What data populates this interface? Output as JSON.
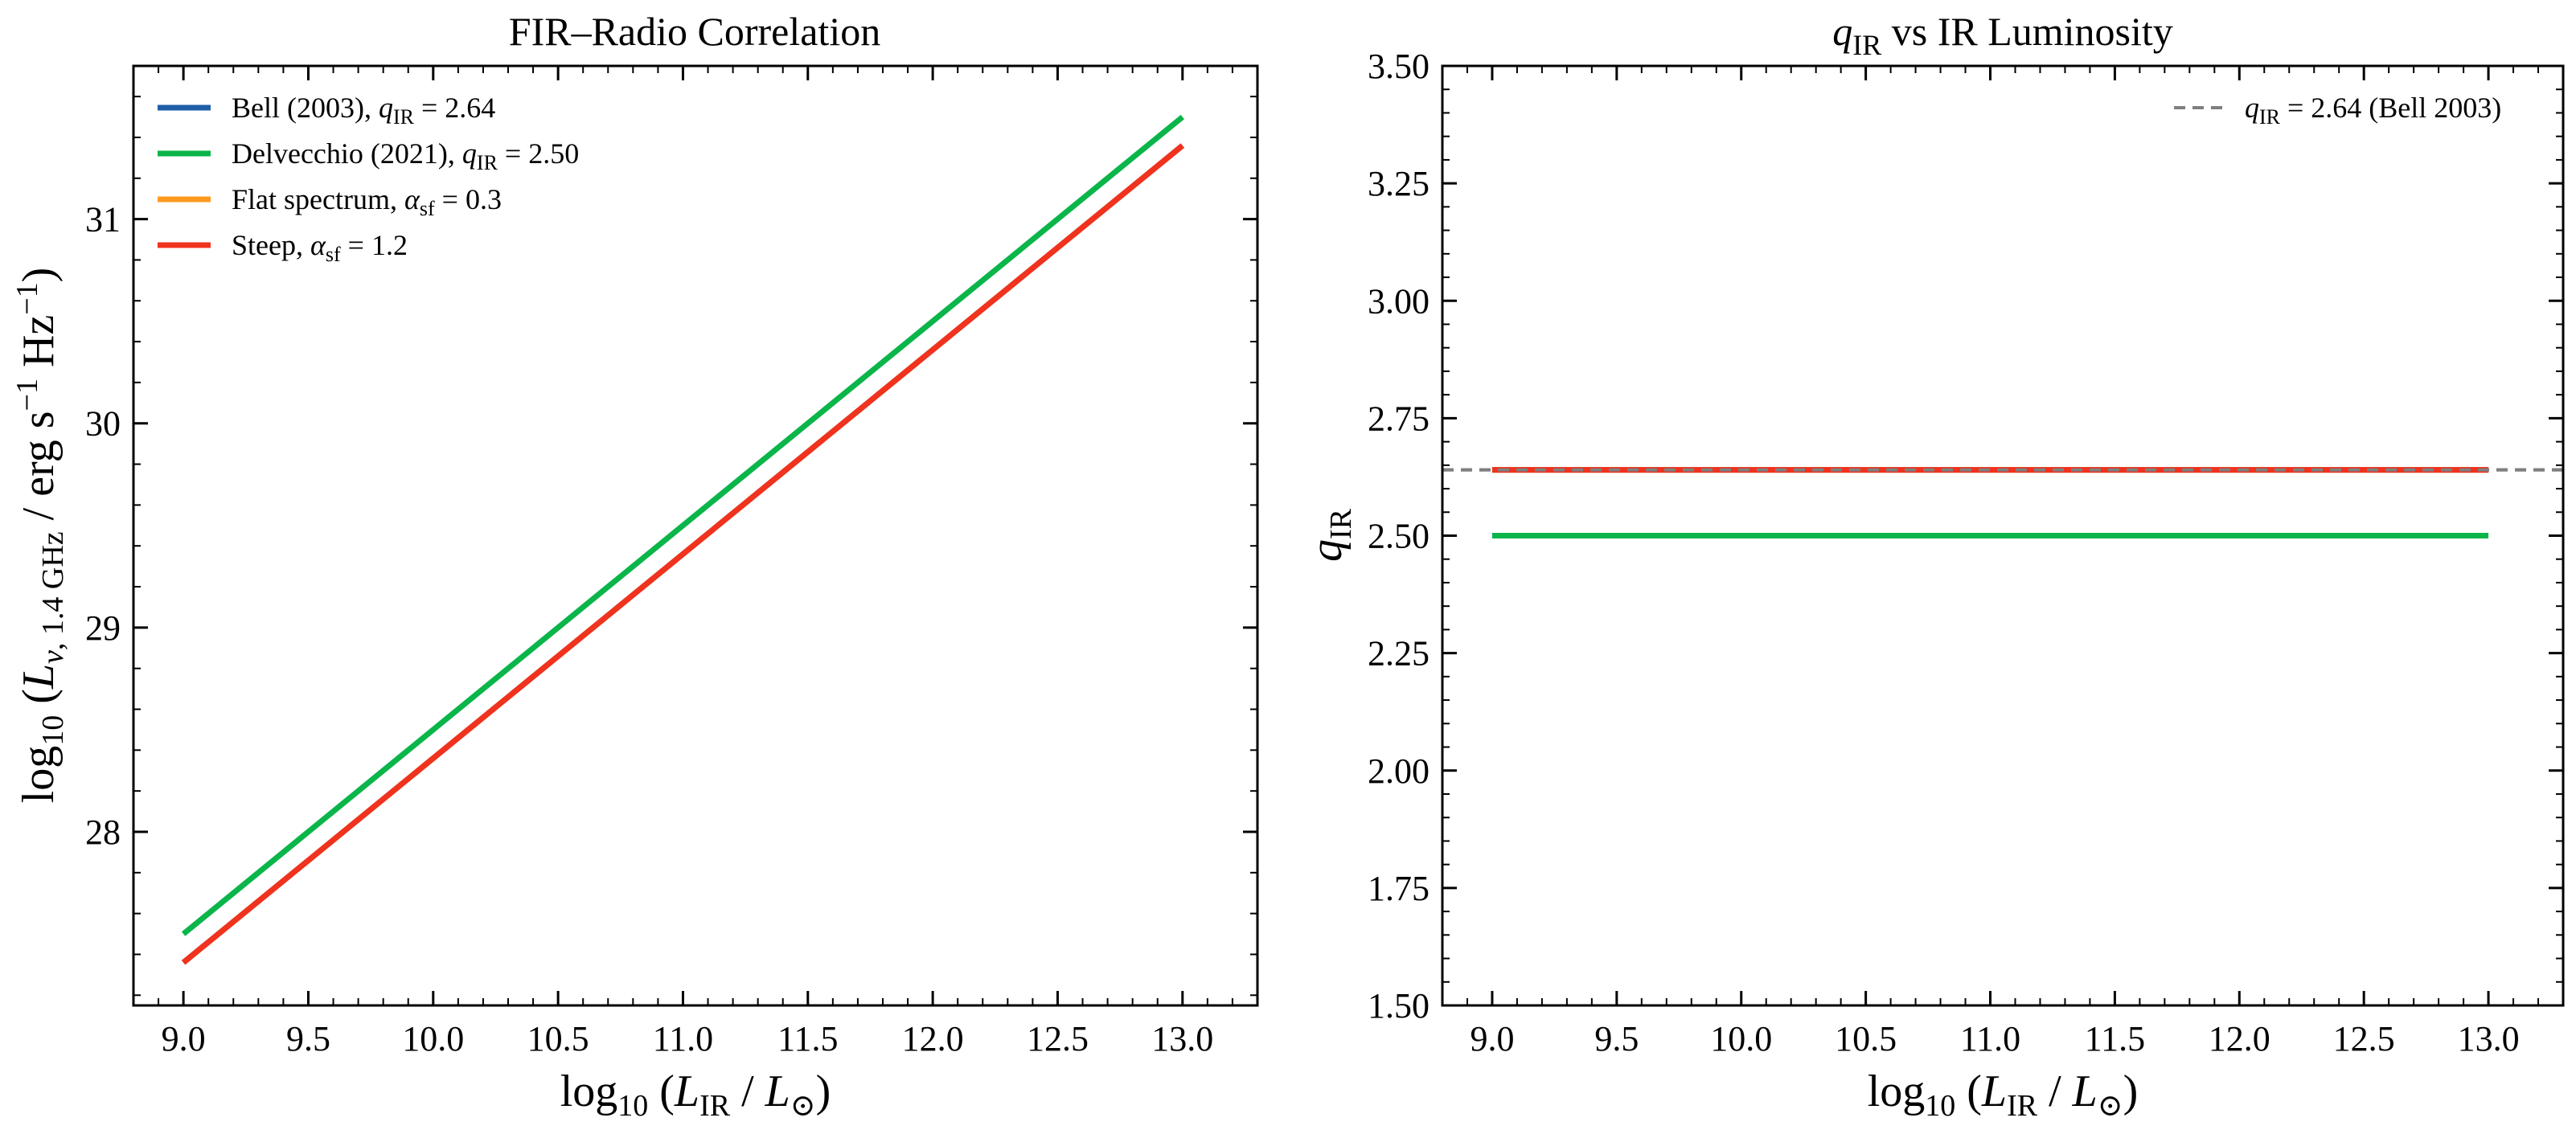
{
  "chart_data": [
    {
      "type": "line",
      "title": "FIR–Radio Correlation",
      "xlabel": "log10 (L_IR / L_⊙)",
      "ylabel": "log10 (L_ν, 1.4 GHz / erg s^−1 Hz^−1)",
      "xlim": [
        8.8,
        13.3
      ],
      "ylim": [
        27.15,
        31.75
      ],
      "xticks": [
        9.0,
        9.5,
        10.0,
        10.5,
        11.0,
        11.5,
        12.0,
        12.5,
        13.0
      ],
      "xtick_labels": [
        "9.0",
        "9.5",
        "10.0",
        "10.5",
        "11.0",
        "11.5",
        "12.0",
        "12.5",
        "13.0"
      ],
      "yticks": [
        28,
        29,
        30,
        31
      ],
      "ytick_labels": [
        "28",
        "29",
        "30",
        "31"
      ],
      "grid": false,
      "legend_position": "top-left",
      "series": [
        {
          "name": "Bell (2003), q_IR = 2.64",
          "color": "#1f5fa8",
          "x": [
            9.0,
            13.0
          ],
          "y": [
            27.36,
            31.36
          ]
        },
        {
          "name": "Delvecchio (2021), q_IR = 2.50",
          "color": "#0ab54a",
          "x": [
            9.0,
            13.0
          ],
          "y": [
            27.5,
            31.5
          ]
        },
        {
          "name": "Flat spectrum, α_sf = 0.3",
          "color": "#ff9a1f",
          "x": [
            9.0,
            13.0
          ],
          "y": [
            27.36,
            31.36
          ]
        },
        {
          "name": "Steep, α_sf = 1.2",
          "color": "#f0321e",
          "x": [
            9.0,
            13.0
          ],
          "y": [
            27.36,
            31.36
          ]
        }
      ]
    },
    {
      "type": "line",
      "title": "q_IR vs IR Luminosity",
      "xlabel": "log10 (L_IR / L_⊙)",
      "ylabel": "q_IR",
      "xlim": [
        8.8,
        13.3
      ],
      "ylim": [
        1.5,
        3.5
      ],
      "xticks": [
        9.0,
        9.5,
        10.0,
        10.5,
        11.0,
        11.5,
        12.0,
        12.5,
        13.0
      ],
      "xtick_labels": [
        "9.0",
        "9.5",
        "10.0",
        "10.5",
        "11.0",
        "11.5",
        "12.0",
        "12.5",
        "13.0"
      ],
      "yticks": [
        1.5,
        1.75,
        2.0,
        2.25,
        2.5,
        2.75,
        3.0,
        3.25,
        3.5
      ],
      "ytick_labels": [
        "1.50",
        "1.75",
        "2.00",
        "2.25",
        "2.50",
        "2.75",
        "3.00",
        "3.25",
        "3.50"
      ],
      "grid": false,
      "legend_position": "top-right",
      "reference_line": {
        "name": "q_IR = 2.64 (Bell 2003)",
        "y": 2.64,
        "color": "#7f7f7f",
        "style": "dashed"
      },
      "series": [
        {
          "name": "Bell (2003), q_IR = 2.64",
          "color": "#1f5fa8",
          "x": [
            9.0,
            13.0
          ],
          "y": [
            2.64,
            2.64
          ]
        },
        {
          "name": "Delvecchio (2021), q_IR = 2.50",
          "color": "#0ab54a",
          "x": [
            9.0,
            13.0
          ],
          "y": [
            2.5,
            2.5
          ]
        },
        {
          "name": "Flat spectrum, α_sf = 0.3",
          "color": "#ff9a1f",
          "x": [
            9.0,
            13.0
          ],
          "y": [
            2.64,
            2.64
          ]
        },
        {
          "name": "Steep, α_sf = 1.2",
          "color": "#f0321e",
          "x": [
            9.0,
            13.0
          ],
          "y": [
            2.64,
            2.64
          ]
        }
      ]
    }
  ]
}
